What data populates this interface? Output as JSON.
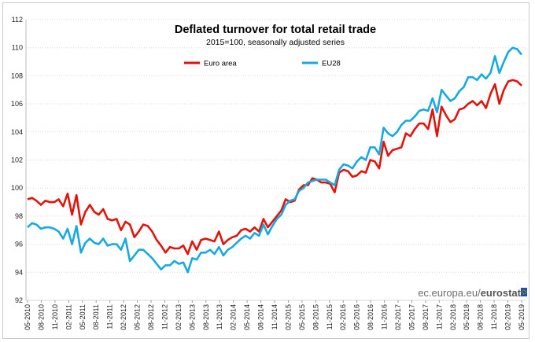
{
  "chart_data": {
    "type": "line",
    "title": "Deflated turnover for total retail trade",
    "subtitle": "2015=100, seasonally adjusted series",
    "source": "ec.europa.eu/",
    "source_bold": "eurostat",
    "ylim": [
      92,
      112
    ],
    "y_ticks": [
      "92",
      "94",
      "96",
      "98",
      "100",
      "102",
      "104",
      "106",
      "108",
      "110",
      "112"
    ],
    "x_ticks": [
      "05-2010",
      "08-2010",
      "11-2010",
      "02-2011",
      "05-2011",
      "08-2011",
      "11-2011",
      "02-2012",
      "05-2012",
      "08-2012",
      "11-2012",
      "02-2013",
      "05-2013",
      "08-2013",
      "11-2013",
      "02-2014",
      "05-2014",
      "08-2014",
      "11-2014",
      "02-2015",
      "05-2015",
      "08-2015",
      "11-2015",
      "02-2016",
      "05-2016",
      "08-2016",
      "11-2016",
      "02-2017",
      "05-2017",
      "08-2017",
      "11-2017",
      "02-2018",
      "05-2018",
      "08-2018",
      "11-2018",
      "02-2019",
      "05-2019"
    ],
    "grid": true,
    "legend_position": "top",
    "series": [
      {
        "name": "Euro area",
        "color": "#e3120b",
        "values": [
          99.2,
          99.3,
          99.1,
          98.8,
          99.1,
          99.0,
          99.0,
          99.2,
          98.7,
          99.6,
          98.1,
          99.5,
          97.4,
          98.3,
          98.8,
          98.3,
          98.1,
          98.5,
          97.8,
          97.7,
          97.8,
          97.0,
          97.6,
          97.4,
          96.5,
          96.9,
          97.4,
          97.3,
          96.9,
          96.3,
          95.9,
          95.4,
          95.8,
          95.7,
          95.7,
          95.9,
          95.3,
          96.2,
          95.6,
          96.3,
          96.4,
          96.3,
          96.2,
          96.9,
          96.0,
          96.3,
          96.5,
          96.6,
          97.0,
          97.1,
          96.9,
          97.2,
          96.9,
          97.8,
          97.2,
          97.6,
          98.0,
          98.4,
          99.2,
          99.0,
          99.1,
          99.9,
          100.2,
          100.2,
          100.7,
          100.6,
          100.4,
          100.4,
          100.3,
          99.7,
          101.1,
          101.3,
          101.2,
          100.8,
          100.9,
          101.2,
          101.1,
          102.0,
          101.9,
          101.4,
          103.3,
          102.3,
          102.7,
          102.8,
          102.9,
          103.9,
          103.7,
          104.2,
          104.6,
          104.6,
          104.2,
          105.6,
          103.7,
          105.8,
          105.2,
          104.7,
          104.9,
          105.6,
          105.7,
          106.0,
          106.2,
          105.9,
          106.2,
          105.7,
          106.7,
          107.4,
          106.0,
          107.0,
          107.6,
          107.7,
          107.6,
          107.3
        ]
      },
      {
        "name": "EU28",
        "color": "#17a9e1",
        "values": [
          97.2,
          97.5,
          97.4,
          97.1,
          97.2,
          97.2,
          97.1,
          96.9,
          96.4,
          97.1,
          96.0,
          97.3,
          95.4,
          96.1,
          96.4,
          96.1,
          96.0,
          96.4,
          95.9,
          96.0,
          96.0,
          95.6,
          96.4,
          94.8,
          95.2,
          95.6,
          95.6,
          95.3,
          95.0,
          94.6,
          94.2,
          94.5,
          94.5,
          94.8,
          94.6,
          94.7,
          94.0,
          95.0,
          94.9,
          95.4,
          95.4,
          95.6,
          95.3,
          95.8,
          95.2,
          95.6,
          95.8,
          96.1,
          96.4,
          96.6,
          96.4,
          96.8,
          96.6,
          97.4,
          96.7,
          97.3,
          97.8,
          98.1,
          98.8,
          99.1,
          99.2,
          99.8,
          100.0,
          100.4,
          100.5,
          100.6,
          100.6,
          100.6,
          100.4,
          100.2,
          101.3,
          101.7,
          101.6,
          101.4,
          101.9,
          102.2,
          102.0,
          102.9,
          102.9,
          102.4,
          104.3,
          103.9,
          103.7,
          104.0,
          104.5,
          104.8,
          104.8,
          105.1,
          105.5,
          105.6,
          105.5,
          106.4,
          105.4,
          107.0,
          106.6,
          106.2,
          106.4,
          106.9,
          107.2,
          107.9,
          107.9,
          107.7,
          108.1,
          107.8,
          108.2,
          109.4,
          108.2,
          109.0,
          109.7,
          110.0,
          109.9,
          109.5
        ]
      }
    ]
  }
}
